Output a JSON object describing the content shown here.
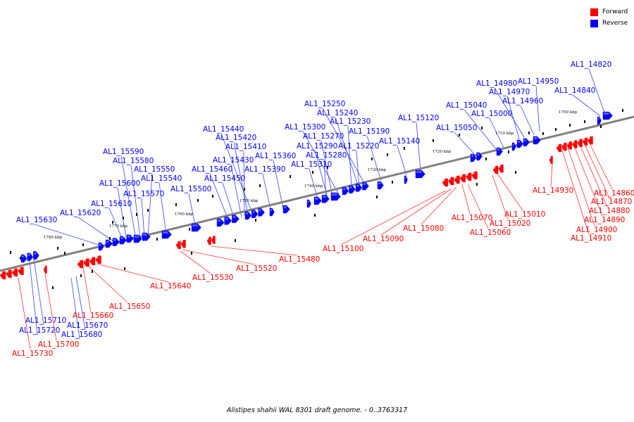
{
  "caption": "Alistipes shahii WAL 8301 draft genome. - 0..3763317",
  "legend": [
    {
      "label": "Forward",
      "color": "#ff0000"
    },
    {
      "label": "Reverse",
      "color": "#0000ff"
    }
  ],
  "colors": {
    "forward": "#ff0000",
    "reverse": "#0000ff",
    "backbone": "#808080",
    "leader_forward": "#ff3333",
    "leader_reverse": "#3344ff"
  },
  "scale": [
    "1700 kbp",
    "1710 kbp",
    "1720 kbp",
    "1730 kbp",
    "1740 kbp",
    "1750 kbp",
    "1760 kbp",
    "1770 kbp",
    "1780 kbp"
  ],
  "genes": [
    {
      "id": "AL1_14820",
      "strand": "reverse"
    },
    {
      "id": "AL1_14840",
      "strand": "reverse"
    },
    {
      "id": "AL1_14950",
      "strand": "reverse"
    },
    {
      "id": "AL1_14980",
      "strand": "reverse"
    },
    {
      "id": "AL1_14970",
      "strand": "reverse"
    },
    {
      "id": "AL1_14960",
      "strand": "reverse"
    },
    {
      "id": "AL1_15040",
      "strand": "reverse"
    },
    {
      "id": "AL1_15000",
      "strand": "reverse"
    },
    {
      "id": "AL1_15050",
      "strand": "reverse"
    },
    {
      "id": "AL1_15120",
      "strand": "reverse"
    },
    {
      "id": "AL1_15140",
      "strand": "reverse"
    },
    {
      "id": "AL1_15250",
      "strand": "reverse"
    },
    {
      "id": "AL1_15240",
      "strand": "reverse"
    },
    {
      "id": "AL1_15230",
      "strand": "reverse"
    },
    {
      "id": "AL1_15190",
      "strand": "reverse"
    },
    {
      "id": "AL1_15220",
      "strand": "reverse"
    },
    {
      "id": "AL1_15300",
      "strand": "reverse"
    },
    {
      "id": "AL1_15270",
      "strand": "reverse"
    },
    {
      "id": "AL1_15290",
      "strand": "reverse"
    },
    {
      "id": "AL1_15280",
      "strand": "reverse"
    },
    {
      "id": "AL1_15310",
      "strand": "reverse"
    },
    {
      "id": "AL1_15440",
      "strand": "reverse"
    },
    {
      "id": "AL1_15420",
      "strand": "reverse"
    },
    {
      "id": "AL1_15410",
      "strand": "reverse"
    },
    {
      "id": "AL1_15360",
      "strand": "reverse"
    },
    {
      "id": "AL1_15430",
      "strand": "reverse"
    },
    {
      "id": "AL1_15460",
      "strand": "reverse"
    },
    {
      "id": "AL1_15390",
      "strand": "reverse"
    },
    {
      "id": "AL1_15450",
      "strand": "reverse"
    },
    {
      "id": "AL1_15500",
      "strand": "reverse"
    },
    {
      "id": "AL1_15590",
      "strand": "reverse"
    },
    {
      "id": "AL1_15580",
      "strand": "reverse"
    },
    {
      "id": "AL1_15550",
      "strand": "reverse"
    },
    {
      "id": "AL1_15540",
      "strand": "reverse"
    },
    {
      "id": "AL1_15600",
      "strand": "reverse"
    },
    {
      "id": "AL1_15570",
      "strand": "reverse"
    },
    {
      "id": "AL1_15610",
      "strand": "reverse"
    },
    {
      "id": "AL1_15620",
      "strand": "reverse"
    },
    {
      "id": "AL1_15630",
      "strand": "reverse"
    },
    {
      "id": "AL1_15710",
      "strand": "reverse"
    },
    {
      "id": "AL1_15720",
      "strand": "reverse"
    },
    {
      "id": "AL1_15670",
      "strand": "reverse"
    },
    {
      "id": "AL1_15680",
      "strand": "reverse"
    },
    {
      "id": "AL1_14930",
      "strand": "forward"
    },
    {
      "id": "AL1_14860",
      "strand": "forward"
    },
    {
      "id": "AL1_14870",
      "strand": "forward"
    },
    {
      "id": "AL1_14880",
      "strand": "forward"
    },
    {
      "id": "AL1_14890",
      "strand": "forward"
    },
    {
      "id": "AL1_14900",
      "strand": "forward"
    },
    {
      "id": "AL1_14910",
      "strand": "forward"
    },
    {
      "id": "AL1_15010",
      "strand": "forward"
    },
    {
      "id": "AL1_15020",
      "strand": "forward"
    },
    {
      "id": "AL1_15070",
      "strand": "forward"
    },
    {
      "id": "AL1_15060",
      "strand": "forward"
    },
    {
      "id": "AL1_15080",
      "strand": "forward"
    },
    {
      "id": "AL1_15090",
      "strand": "forward"
    },
    {
      "id": "AL1_15100",
      "strand": "forward"
    },
    {
      "id": "AL1_15480",
      "strand": "forward"
    },
    {
      "id": "AL1_15520",
      "strand": "forward"
    },
    {
      "id": "AL1_15530",
      "strand": "forward"
    },
    {
      "id": "AL1_15640",
      "strand": "forward"
    },
    {
      "id": "AL1_15650",
      "strand": "forward"
    },
    {
      "id": "AL1_15660",
      "strand": "forward"
    },
    {
      "id": "AL1_15700",
      "strand": "forward"
    },
    {
      "id": "AL1_15730",
      "strand": "forward"
    }
  ]
}
